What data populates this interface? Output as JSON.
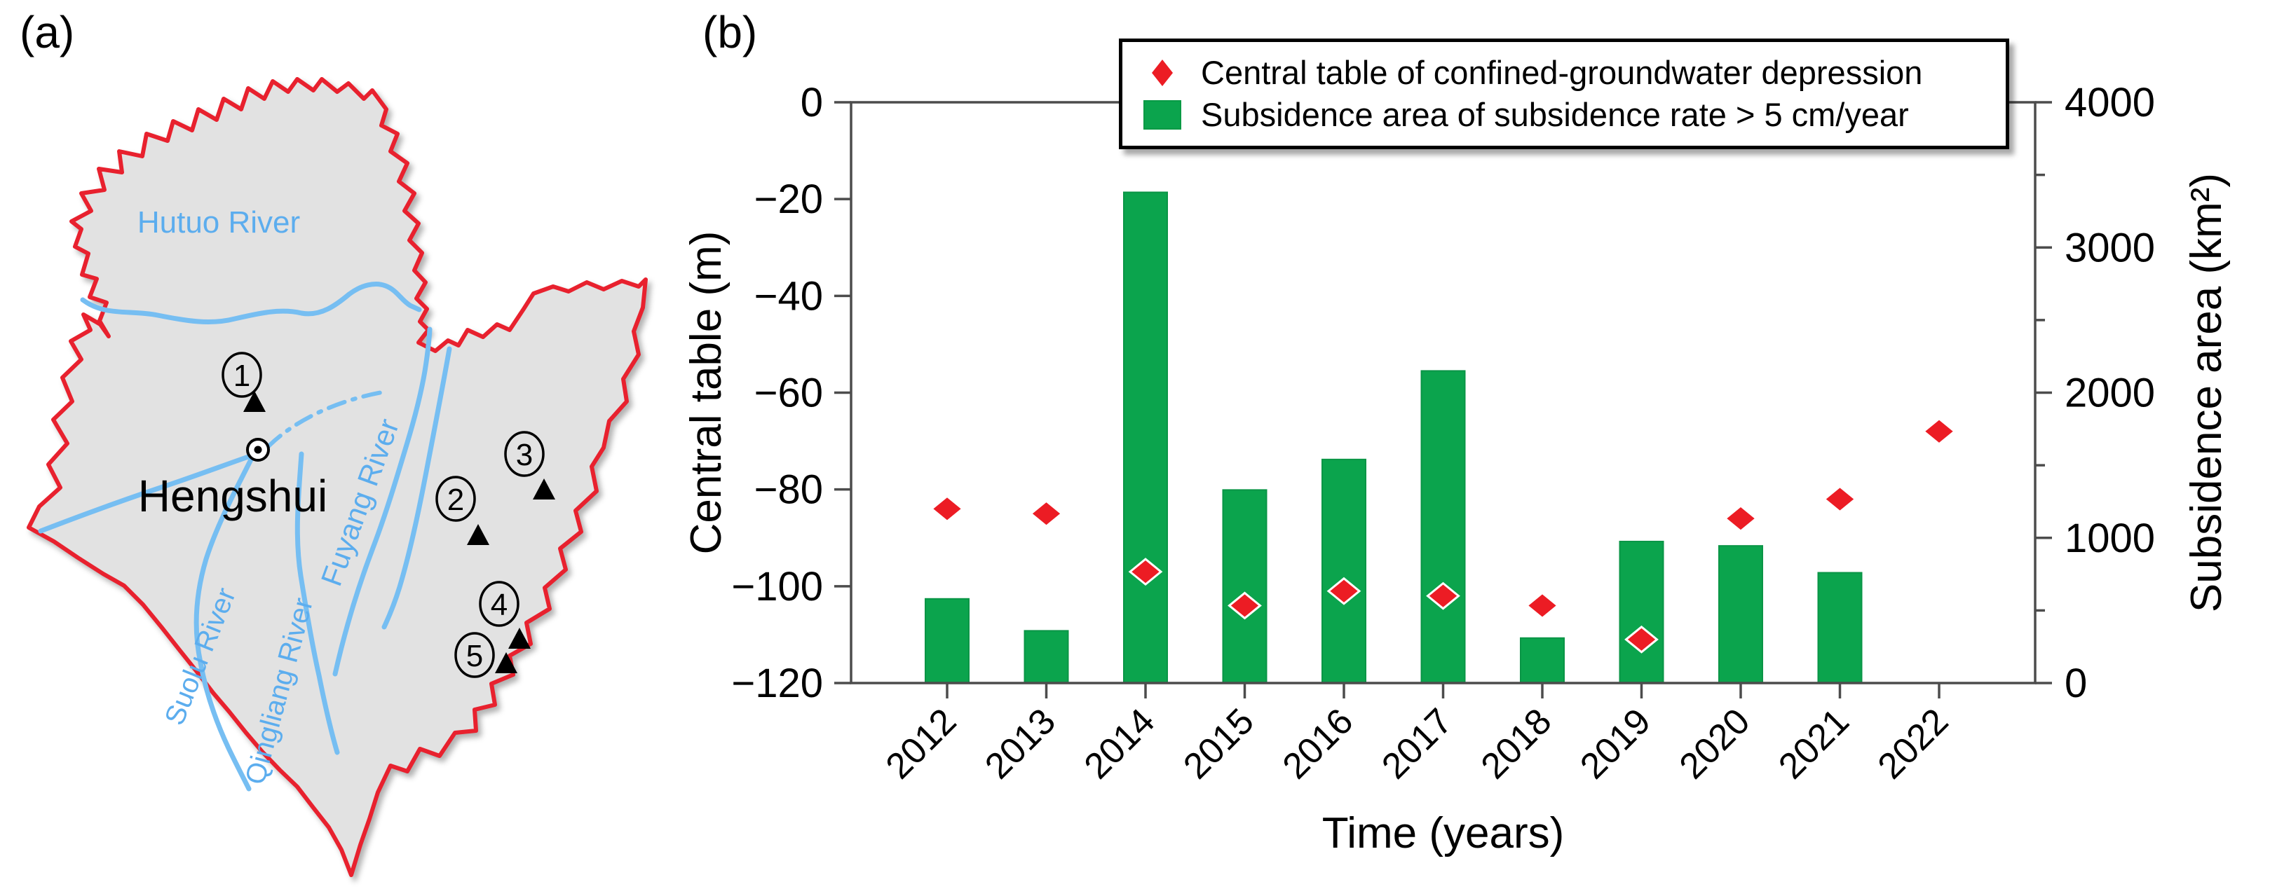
{
  "panels": {
    "a": {
      "label": "(a)"
    },
    "b": {
      "label": "(b)"
    }
  },
  "map": {
    "city": {
      "name": "Hengshui"
    },
    "rivers": [
      {
        "name": "Hutuo River"
      },
      {
        "name": "Fuyang River"
      },
      {
        "name": "Suolu River"
      },
      {
        "name": "Qingliang River"
      }
    ],
    "sites": [
      {
        "number": "1"
      },
      {
        "number": "2"
      },
      {
        "number": "3"
      },
      {
        "number": "4"
      },
      {
        "number": "5"
      }
    ],
    "colors": {
      "boundary": "#e8212e",
      "land": "#e2e2e2",
      "river": "#76bef2",
      "river_label": "#5cadee",
      "marker": "#000000"
    }
  },
  "chart_data": {
    "type": "bar",
    "categories": [
      "2012",
      "2013",
      "2014",
      "2015",
      "2016",
      "2017",
      "2018",
      "2019",
      "2020",
      "2021",
      "2022"
    ],
    "series": [
      {
        "name": "Central table of confined-groundwater depression",
        "type": "scatter",
        "marker": "diamond",
        "axis": "left",
        "color": "#ec1c24",
        "values": [
          -84,
          -85,
          -97,
          -104,
          -101,
          -102,
          -104,
          -111,
          -86,
          -82,
          -68
        ]
      },
      {
        "name": "Subsidence area of subsidence rate > 5 cm/year",
        "type": "bar",
        "axis": "right",
        "color": "#0ba44d",
        "values": [
          580,
          360,
          3380,
          1330,
          1540,
          2150,
          310,
          975,
          945,
          760,
          null
        ]
      }
    ],
    "left_axis": {
      "title": "Central table (m)",
      "min": -120,
      "max": 0,
      "major_step": 20
    },
    "right_axis": {
      "title": "Subsidence area (km²)",
      "min": 0,
      "max": 4000,
      "major_step": 1000,
      "minor_step": 500
    },
    "xlabel": "Time (years)",
    "grid": false,
    "legend_position": "top-right",
    "frame_color": "#4c4c4c"
  }
}
